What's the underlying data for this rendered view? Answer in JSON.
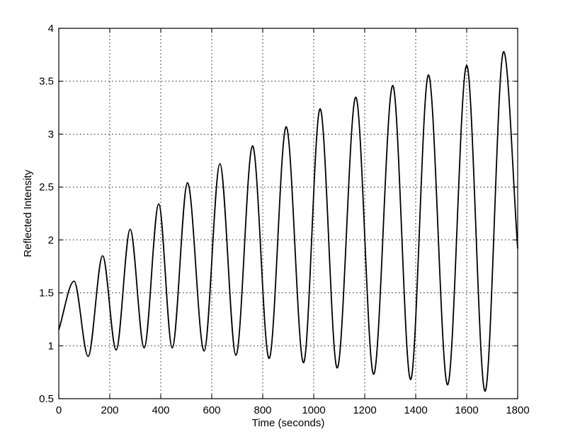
{
  "chart_data": {
    "type": "line",
    "title": "",
    "xlabel": "Time (seconds)",
    "ylabel": "Reflected Intensity",
    "xlim": [
      0,
      1800
    ],
    "ylim": [
      0.5,
      4
    ],
    "x_ticks": [
      0,
      200,
      400,
      600,
      800,
      1000,
      1200,
      1400,
      1600,
      1800
    ],
    "y_ticks": [
      0.5,
      1,
      1.5,
      2,
      2.5,
      3,
      3.5,
      4
    ],
    "x_tick_labels": [
      "0",
      "200",
      "400",
      "600",
      "800",
      "1000",
      "1200",
      "1400",
      "1600",
      "1800"
    ],
    "y_tick_labels": [
      "0.5",
      "1",
      "1.5",
      "2",
      "2.5",
      "3",
      "3.5",
      "4"
    ],
    "grid": true,
    "legend": "none",
    "line_color": "#000000",
    "series": [
      {
        "x": [
          0,
          60,
          115,
          172,
          225,
          280,
          335,
          392,
          445,
          505,
          570,
          632,
          695,
          760,
          825,
          892,
          960,
          1025,
          1092,
          1165,
          1235,
          1310,
          1380,
          1450,
          1525,
          1600,
          1672,
          1745,
          1800
        ],
        "values": [
          1.15,
          1.61,
          0.9,
          1.85,
          0.96,
          2.1,
          0.98,
          2.34,
          0.98,
          2.54,
          0.95,
          2.72,
          0.91,
          2.89,
          0.88,
          3.07,
          0.84,
          3.24,
          0.79,
          3.35,
          0.73,
          3.46,
          0.68,
          3.56,
          0.63,
          3.65,
          0.57,
          3.78,
          1.92
        ]
      }
    ]
  }
}
